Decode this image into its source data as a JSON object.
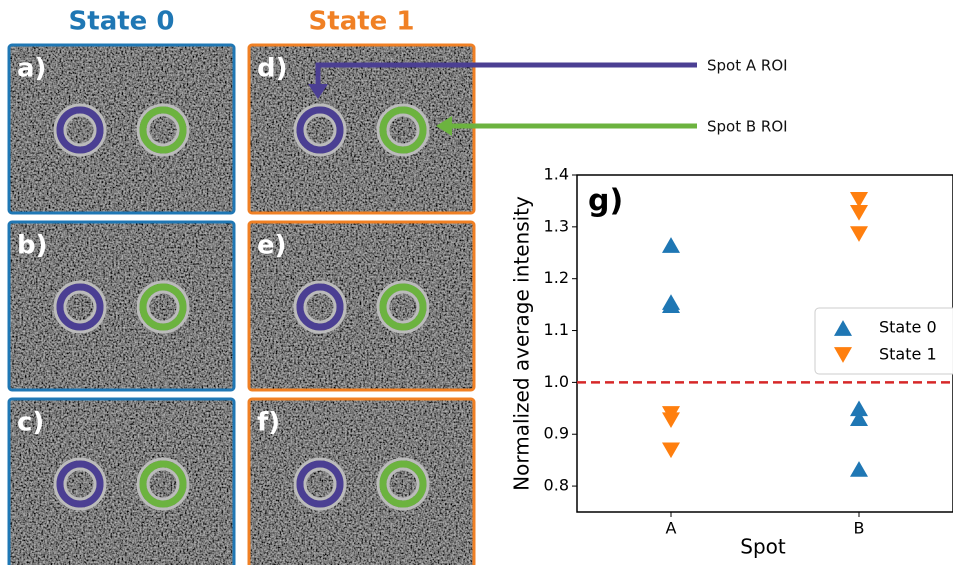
{
  "columns": [
    {
      "title": "State 0",
      "color": "#1f77b4"
    },
    {
      "title": "State 1",
      "color": "#f08024"
    }
  ],
  "panels": [
    {
      "label": "a)"
    },
    {
      "label": "b)"
    },
    {
      "label": "c)"
    },
    {
      "label": "d)"
    },
    {
      "label": "e)"
    },
    {
      "label": "f)"
    }
  ],
  "annotations": [
    {
      "text": "Spot A ROI",
      "color": "#4b3f93"
    },
    {
      "text": "Spot B ROI",
      "color": "#6cb33f"
    }
  ],
  "chart_data": {
    "type": "scatter",
    "panel_label": "g)",
    "xlabel": "Spot",
    "ylabel": "Normalized average intensity",
    "categories": [
      "A",
      "B"
    ],
    "series": [
      {
        "name": "State 0",
        "color": "#1f77b4",
        "marker": "triangle-up",
        "values": [
          [
            1.265,
            1.155,
            1.149
          ],
          [
            0.95,
            0.931,
            0.833
          ]
        ]
      },
      {
        "name": "State 1",
        "color": "#ff7f0e",
        "marker": "triangle-down",
        "values": [
          [
            0.939,
            0.927,
            0.869
          ],
          [
            1.352,
            1.327,
            1.286
          ]
        ]
      }
    ],
    "ylim": [
      0.75,
      1.4
    ],
    "yticks": [
      0.8,
      0.9,
      {
        "value": 1.0,
        "label": "1.0"
      },
      1.1,
      1.2,
      1.3,
      1.4
    ],
    "hline": {
      "value": 1.0,
      "color": "#d62728",
      "dashed": true
    },
    "legend": "right"
  }
}
